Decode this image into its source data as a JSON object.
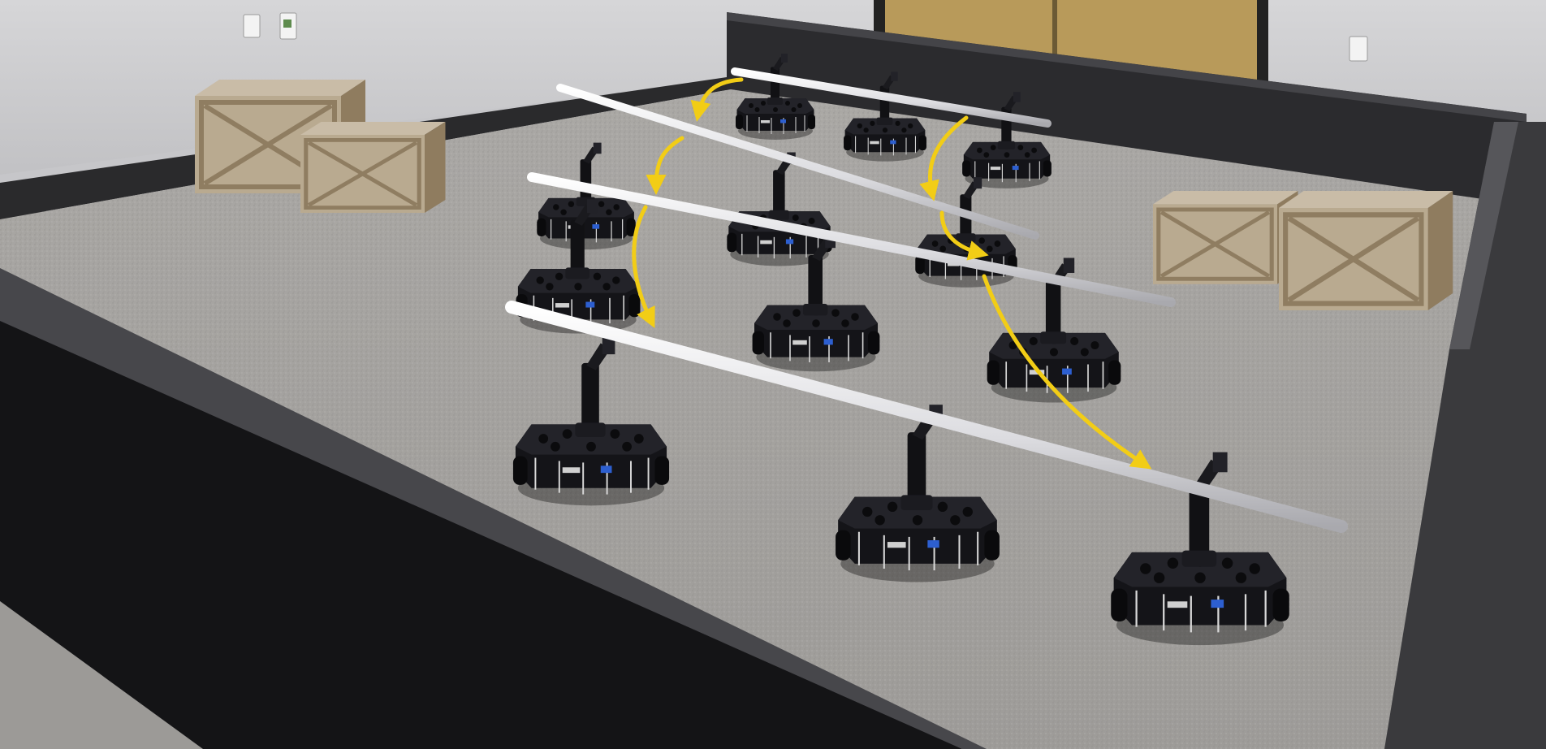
{
  "scene": {
    "subject": "robot-arena-photo",
    "colors": {
      "wall": "#cfcfd1",
      "wall_shadow": "#b9b9bc",
      "baseboard": "#2a2a2c",
      "floor": "#a9a7a5",
      "floor_light": "#b8b6b3",
      "rim": "#3a3a3d",
      "rim_top": "#555558",
      "barrier_front": "#141416",
      "door": "#b89a5a",
      "crate_light": "#c7b9a4",
      "crate_dark": "#a58a5e",
      "robot": "#16161a",
      "robot_accent": "#2d5fd0",
      "pole": "#e9e9ec",
      "arrow": "#f2cd16"
    },
    "icons": [
      "robot-icon",
      "crate-icon",
      "arrow-icon",
      "pole-icon",
      "outlet-icon"
    ]
  }
}
